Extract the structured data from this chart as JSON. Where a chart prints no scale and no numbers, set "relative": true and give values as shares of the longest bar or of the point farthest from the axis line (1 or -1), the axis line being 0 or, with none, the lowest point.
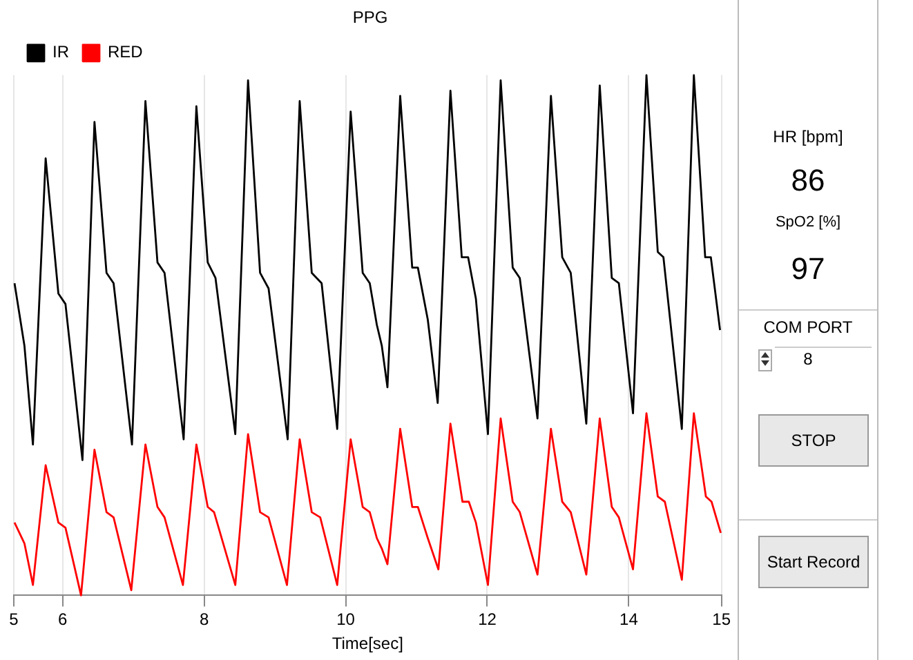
{
  "chart_data": [
    {
      "type": "line",
      "title": "PPG",
      "xlabel": "Time[sec]",
      "relative": true,
      "legend": "top left",
      "grid": "x",
      "marker": "none",
      "line_style": "solid",
      "xlim": [
        5.31,
        15.31
      ],
      "xticks": [
        {
          "value": 5.31,
          "label": "5"
        },
        6,
        8,
        10,
        12,
        14,
        {
          "value": 15.31,
          "label": "15"
        }
      ],
      "series": [
        {
          "name": "IR",
          "color": "#000000",
          "x": [
            5.32,
            5.46,
            5.58,
            5.76,
            5.94,
            6.04,
            6.28,
            6.45,
            6.62,
            6.72,
            6.98,
            7.17,
            7.34,
            7.44,
            7.71,
            7.89,
            8.05,
            8.16,
            8.44,
            8.62,
            8.79,
            8.91,
            9.18,
            9.35,
            9.52,
            9.66,
            9.88,
            10.07,
            10.24,
            10.34,
            10.44,
            10.51,
            10.59,
            10.77,
            10.94,
            11.02,
            11.16,
            11.3,
            11.48,
            11.64,
            11.73,
            11.84,
            12.01,
            12.19,
            12.36,
            12.46,
            12.71,
            12.9,
            13.06,
            13.18,
            13.4,
            13.59,
            13.76,
            13.86,
            14.06,
            14.25,
            14.41,
            14.49,
            14.75,
            14.92,
            15.08,
            15.16,
            15.29
          ],
          "values": [
            0.6,
            0.48,
            0.29,
            0.84,
            0.58,
            0.56,
            0.26,
            0.91,
            0.62,
            0.6,
            0.29,
            0.95,
            0.64,
            0.62,
            0.3,
            0.94,
            0.64,
            0.61,
            0.31,
            0.99,
            0.62,
            0.59,
            0.3,
            0.95,
            0.62,
            0.6,
            0.32,
            0.93,
            0.62,
            0.6,
            0.52,
            0.48,
            0.4,
            0.96,
            0.63,
            0.63,
            0.53,
            0.37,
            0.97,
            0.65,
            0.65,
            0.57,
            0.31,
            0.99,
            0.63,
            0.61,
            0.34,
            0.96,
            0.65,
            0.62,
            0.33,
            0.98,
            0.61,
            0.6,
            0.35,
            1.0,
            0.66,
            0.65,
            0.32,
            1.0,
            0.65,
            0.65,
            0.51
          ]
        },
        {
          "name": "RED",
          "color": "#ff0000",
          "x": [
            5.32,
            5.46,
            5.58,
            5.76,
            5.94,
            6.04,
            6.26,
            6.45,
            6.62,
            6.72,
            6.97,
            7.17,
            7.34,
            7.44,
            7.7,
            7.89,
            8.05,
            8.14,
            8.44,
            8.62,
            8.79,
            8.91,
            9.17,
            9.35,
            9.52,
            9.64,
            9.88,
            10.07,
            10.24,
            10.34,
            10.44,
            10.51,
            10.59,
            10.77,
            10.94,
            11.02,
            11.16,
            11.31,
            11.48,
            11.65,
            11.74,
            11.84,
            12.01,
            12.19,
            12.36,
            12.46,
            12.71,
            12.9,
            13.06,
            13.18,
            13.4,
            13.59,
            13.76,
            13.86,
            14.06,
            14.25,
            14.41,
            14.51,
            14.75,
            14.92,
            15.09,
            15.17,
            15.3
          ],
          "values": [
            0.14,
            0.1,
            0.02,
            0.25,
            0.14,
            0.13,
            0.0,
            0.28,
            0.16,
            0.15,
            0.01,
            0.29,
            0.17,
            0.15,
            0.02,
            0.29,
            0.17,
            0.16,
            0.02,
            0.31,
            0.16,
            0.15,
            0.02,
            0.3,
            0.16,
            0.15,
            0.02,
            0.3,
            0.17,
            0.16,
            0.11,
            0.09,
            0.06,
            0.32,
            0.17,
            0.17,
            0.11,
            0.05,
            0.33,
            0.18,
            0.18,
            0.14,
            0.02,
            0.34,
            0.18,
            0.16,
            0.04,
            0.32,
            0.18,
            0.16,
            0.04,
            0.34,
            0.17,
            0.15,
            0.05,
            0.35,
            0.19,
            0.18,
            0.03,
            0.35,
            0.19,
            0.18,
            0.12
          ]
        }
      ]
    },
    {
      "type": "other",
      "annotations": [
        "HR [bpm]",
        "86",
        "SpO2 [%]",
        "97",
        "COM PORT",
        "8",
        "STOP",
        "Start Record"
      ]
    }
  ]
}
